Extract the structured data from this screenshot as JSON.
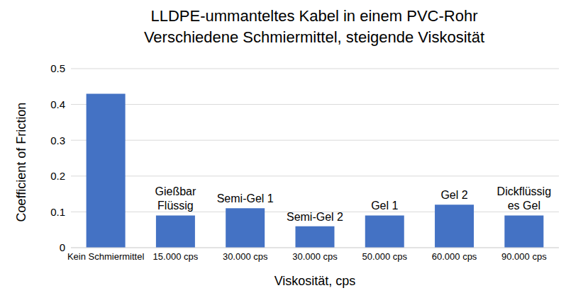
{
  "chart_data": {
    "type": "bar",
    "title": "LLDPE-ummanteltes Kabel in einem PVC-Rohr",
    "subtitle": "Verschiedene Schmiermittel, steigende Viskosität",
    "x_label": "Viskosität, cps",
    "y_label": "Coefficient of Friction",
    "categories": [
      "Kein Schmiermittel",
      "15.000 cps",
      "30.000 cps",
      "30.000 cps",
      "50.000 cps",
      "60.000 cps",
      "90.000 cps"
    ],
    "values": [
      0.43,
      0.09,
      0.11,
      0.06,
      0.09,
      0.12,
      0.09
    ],
    "annotations": [
      null,
      [
        "Gießbar",
        "Flüssig"
      ],
      [
        "Semi-Gel 1"
      ],
      [
        "Semi-Gel 2"
      ],
      [
        "Gel 1"
      ],
      [
        "Gel 2"
      ],
      [
        "Dickflüssig",
        "es Gel"
      ]
    ],
    "color": "#4472c4",
    "ylim": [
      0,
      0.5
    ],
    "yticks": [
      0,
      0.1,
      0.2,
      0.3,
      0.4,
      0.5
    ],
    "grid": true
  }
}
